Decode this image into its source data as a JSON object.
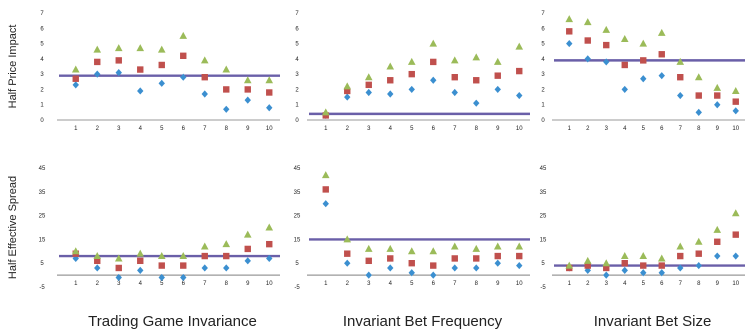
{
  "colors": {
    "series_a": "#3b8fd0",
    "series_b": "#c0504d",
    "series_c": "#9bbb59",
    "reference_line": "#6a5fa8"
  },
  "chart_data": [
    {
      "type": "scatter",
      "row_label": "Half Price Impact",
      "col_title": "",
      "x": [
        1,
        2,
        3,
        4,
        5,
        6,
        7,
        8,
        9,
        10
      ],
      "ylim": [
        0,
        7
      ],
      "yticks": [
        "0",
        "1",
        "2",
        "3",
        "4",
        "5",
        "6",
        "7"
      ],
      "xticks": [
        "1",
        "2",
        "3",
        "4",
        "5",
        "6",
        "7",
        "8",
        "9",
        "10"
      ],
      "grid": false,
      "series": [
        {
          "marker": "diamond",
          "values": [
            2.3,
            3.0,
            3.1,
            1.9,
            2.4,
            2.8,
            1.7,
            0.7,
            1.3,
            0.8
          ]
        },
        {
          "marker": "square",
          "values": [
            2.7,
            3.8,
            3.9,
            3.3,
            3.6,
            4.2,
            2.8,
            2.0,
            2.0,
            1.8
          ]
        },
        {
          "marker": "triangle",
          "values": [
            3.3,
            4.6,
            4.7,
            4.7,
            4.6,
            5.5,
            3.9,
            3.3,
            2.6,
            2.6
          ]
        }
      ],
      "reference": 2.9
    },
    {
      "type": "scatter",
      "row_label": "",
      "col_title": "",
      "x": [
        1,
        2,
        3,
        4,
        5,
        6,
        7,
        8,
        9,
        10
      ],
      "ylim": [
        0,
        7
      ],
      "yticks": [
        "0",
        "1",
        "2",
        "3",
        "4",
        "5",
        "6",
        "7"
      ],
      "xticks": [
        "1",
        "2",
        "3",
        "4",
        "5",
        "6",
        "7",
        "8",
        "9",
        "10"
      ],
      "grid": false,
      "series": [
        {
          "marker": "diamond",
          "values": [
            0.3,
            1.5,
            1.8,
            1.7,
            2.0,
            2.6,
            1.8,
            1.1,
            2.0,
            1.6
          ]
        },
        {
          "marker": "square",
          "values": [
            0.3,
            1.9,
            2.3,
            2.6,
            3.0,
            3.8,
            2.8,
            2.6,
            2.9,
            3.2
          ]
        },
        {
          "marker": "triangle",
          "values": [
            0.5,
            2.2,
            2.8,
            3.5,
            3.8,
            5.0,
            3.9,
            4.1,
            3.8,
            4.8
          ]
        }
      ],
      "reference": 0.4
    },
    {
      "type": "scatter",
      "row_label": "",
      "col_title": "",
      "x": [
        1,
        2,
        3,
        4,
        5,
        6,
        7,
        8,
        9,
        10
      ],
      "ylim": [
        0,
        7
      ],
      "yticks": [
        "0",
        "1",
        "2",
        "3",
        "4",
        "5",
        "6",
        "7"
      ],
      "xticks": [
        "1",
        "2",
        "3",
        "4",
        "5",
        "6",
        "7",
        "8",
        "9",
        "10"
      ],
      "grid": false,
      "series": [
        {
          "marker": "diamond",
          "values": [
            5.0,
            4.0,
            3.8,
            2.0,
            2.7,
            2.9,
            1.6,
            0.5,
            1.0,
            0.6
          ]
        },
        {
          "marker": "square",
          "values": [
            5.8,
            5.2,
            4.9,
            3.6,
            3.9,
            4.3,
            2.8,
            1.6,
            1.6,
            1.2
          ]
        },
        {
          "marker": "triangle",
          "values": [
            6.6,
            6.4,
            5.9,
            5.3,
            5.0,
            5.7,
            3.8,
            2.8,
            2.1,
            1.9
          ]
        }
      ],
      "reference": 3.9
    },
    {
      "type": "scatter",
      "row_label": "Half Effective Spread",
      "col_title": "Trading Game Invariance",
      "x": [
        1,
        2,
        3,
        4,
        5,
        6,
        7,
        8,
        9,
        10
      ],
      "ylim": [
        -5,
        45
      ],
      "yticks": [
        "-5",
        "5",
        "15",
        "25",
        "35",
        "45"
      ],
      "xticks": [
        "1",
        "2",
        "3",
        "4",
        "5",
        "6",
        "7",
        "8",
        "9",
        "10"
      ],
      "grid": false,
      "series": [
        {
          "marker": "diamond",
          "values": [
            7,
            3,
            -1,
            2,
            -1,
            -1,
            3,
            3,
            6,
            7
          ]
        },
        {
          "marker": "square",
          "values": [
            9,
            6,
            3,
            6,
            4,
            4,
            8,
            8,
            11,
            13
          ]
        },
        {
          "marker": "triangle",
          "values": [
            10,
            8,
            7,
            9,
            8,
            8,
            12,
            13,
            17,
            20
          ]
        }
      ],
      "reference": 8
    },
    {
      "type": "scatter",
      "row_label": "",
      "col_title": "Invariant Bet Frequency",
      "x": [
        1,
        2,
        3,
        4,
        5,
        6,
        7,
        8,
        9,
        10
      ],
      "ylim": [
        -5,
        45
      ],
      "yticks": [
        "-5",
        "5",
        "15",
        "25",
        "35",
        "45"
      ],
      "xticks": [
        "1",
        "2",
        "3",
        "4",
        "5",
        "6",
        "7",
        "8",
        "9",
        "10"
      ],
      "grid": false,
      "series": [
        {
          "marker": "diamond",
          "values": [
            30,
            5,
            0,
            3,
            1,
            0,
            3,
            3,
            5,
            4
          ]
        },
        {
          "marker": "square",
          "values": [
            36,
            9,
            6,
            7,
            5,
            4,
            7,
            7,
            8,
            8
          ]
        },
        {
          "marker": "triangle",
          "values": [
            42,
            15,
            11,
            11,
            10,
            10,
            12,
            11,
            12,
            12
          ]
        }
      ],
      "reference": 15
    },
    {
      "type": "scatter",
      "row_label": "",
      "col_title": "Invariant Bet Size",
      "x": [
        1,
        2,
        3,
        4,
        5,
        6,
        7,
        8,
        9,
        10
      ],
      "ylim": [
        -5,
        45
      ],
      "yticks": [
        "-5",
        "5",
        "15",
        "25",
        "35",
        "45"
      ],
      "xticks": [
        "1",
        "2",
        "3",
        "4",
        "5",
        "6",
        "7",
        "8",
        "9",
        "10"
      ],
      "grid": false,
      "series": [
        {
          "marker": "diamond",
          "values": [
            3,
            2,
            0,
            2,
            1,
            1,
            3,
            4,
            8,
            8
          ]
        },
        {
          "marker": "square",
          "values": [
            3,
            4,
            3,
            5,
            4,
            4,
            8,
            9,
            14,
            17
          ]
        },
        {
          "marker": "triangle",
          "values": [
            4,
            6,
            5,
            8,
            8,
            7,
            12,
            14,
            19,
            26
          ]
        }
      ],
      "reference": 4
    }
  ]
}
